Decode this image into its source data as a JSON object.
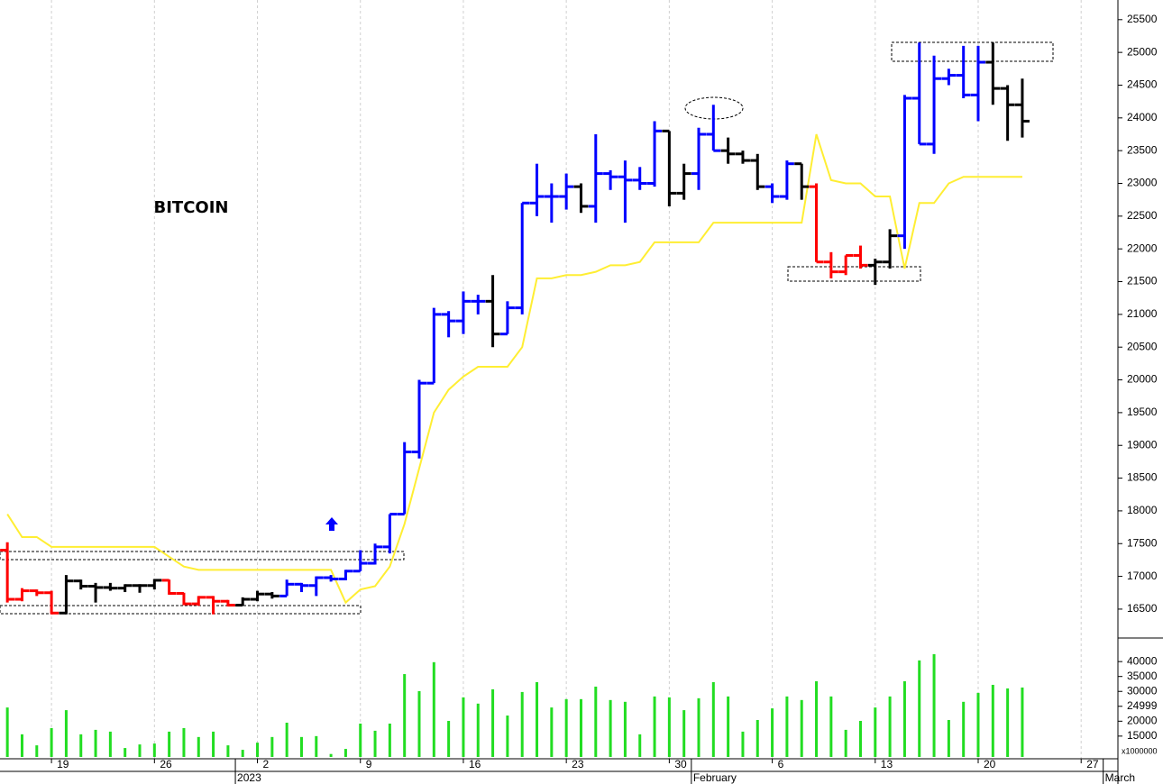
{
  "chart_data": [
    {
      "type": "ohlc",
      "title": "BITCOIN",
      "categories": [
        null,
        null,
        null,
        "19",
        null,
        null,
        null,
        null,
        null,
        null,
        "26",
        null,
        null,
        null,
        null,
        null,
        null,
        "2",
        null,
        null,
        null,
        null,
        null,
        null,
        "9",
        null,
        null,
        null,
        null,
        null,
        null,
        "16",
        null,
        null,
        null,
        null,
        null,
        null,
        "23",
        null,
        null,
        null,
        null,
        null,
        null,
        "30",
        null,
        null,
        null,
        null,
        null,
        null,
        "6",
        null,
        null,
        null,
        null,
        null,
        null,
        "13",
        null,
        null,
        null,
        null,
        null,
        null,
        "20",
        null,
        null,
        null,
        null,
        null,
        null,
        "27",
        null,
        null
      ],
      "months": [
        null,
        null,
        null,
        null,
        null,
        null,
        null,
        null,
        null,
        null,
        null,
        null,
        null,
        null,
        null,
        null,
        "2023",
        null,
        null,
        null,
        null,
        null,
        null,
        null,
        null,
        null,
        null,
        null,
        null,
        null,
        null,
        null,
        null,
        null,
        null,
        null,
        null,
        null,
        null,
        null,
        null,
        null,
        null,
        null,
        null,
        null,
        null,
        "February",
        null,
        null,
        null,
        null,
        null,
        null,
        null,
        null,
        null,
        null,
        null,
        null,
        null,
        null,
        null,
        null,
        null,
        null,
        null,
        null,
        null,
        null,
        null,
        null,
        null,
        null,
        null,
        "March"
      ],
      "open": [
        17400,
        16650,
        16780,
        16750,
        16440,
        16930,
        16850,
        16830,
        16820,
        16860,
        16860,
        16940,
        16740,
        16580,
        16680,
        16620,
        16560,
        16650,
        16730,
        16700,
        16880,
        16860,
        16980,
        16960,
        17080,
        17200,
        17450,
        17950,
        18900,
        19950,
        21000,
        20900,
        21200,
        21200,
        20700,
        21100,
        22700,
        22800,
        22800,
        22950,
        22650,
        23150,
        23100,
        23050,
        23000,
        23800,
        22850,
        23150,
        23750,
        23500,
        23450,
        23350,
        22950,
        22800,
        23300,
        22950,
        21800,
        21650,
        21900,
        21750,
        21800,
        22200,
        24300,
        23600,
        24600,
        24650,
        24350,
        24850,
        24450,
        24200,
        null,
        null,
        null,
        null,
        null,
        null
      ],
      "high": [
        17520,
        16820,
        16800,
        16780,
        17020,
        16950,
        16900,
        16900,
        16880,
        16880,
        16960,
        16950,
        16750,
        16700,
        16700,
        16640,
        16680,
        16780,
        16760,
        16950,
        16900,
        17000,
        17020,
        17100,
        17400,
        17500,
        17950,
        19050,
        20000,
        21100,
        21050,
        21350,
        21300,
        21600,
        21200,
        22700,
        23300,
        23000,
        23150,
        23000,
        23750,
        23200,
        23350,
        23250,
        23950,
        23800,
        23300,
        23850,
        24200,
        23700,
        23500,
        23450,
        23000,
        23350,
        23300,
        23000,
        21950,
        21900,
        22050,
        21850,
        22300,
        24350,
        25150,
        24950,
        24750,
        25100,
        25100,
        25150,
        24500,
        24600,
        null,
        null,
        null,
        null,
        null,
        null
      ],
      "low": [
        16600,
        16620,
        16700,
        16420,
        16420,
        16800,
        16600,
        16780,
        16760,
        16750,
        16800,
        16720,
        16560,
        16550,
        16420,
        16540,
        16550,
        16620,
        16660,
        16700,
        16760,
        16700,
        16920,
        16940,
        17080,
        17180,
        17350,
        17950,
        18800,
        19950,
        20650,
        20700,
        21000,
        20500,
        20700,
        21000,
        22500,
        22400,
        22600,
        22550,
        22400,
        22900,
        22400,
        22900,
        22950,
        22650,
        22750,
        22900,
        23500,
        23300,
        23300,
        22900,
        22700,
        22750,
        22750,
        21800,
        21550,
        21600,
        21700,
        21450,
        21700,
        22000,
        23600,
        23450,
        24500,
        24300,
        23950,
        24200,
        23650,
        23700,
        null,
        null,
        null,
        null,
        null,
        null
      ],
      "close": [
        16650,
        16780,
        16750,
        16440,
        16930,
        16850,
        16830,
        16820,
        16860,
        16860,
        16940,
        16740,
        16580,
        16680,
        16620,
        16560,
        16650,
        16730,
        16700,
        16880,
        16860,
        16980,
        16960,
        17080,
        17200,
        17450,
        17950,
        18900,
        19950,
        21000,
        20900,
        21200,
        21200,
        20700,
        21100,
        22700,
        22800,
        22800,
        22950,
        22650,
        23150,
        23100,
        23050,
        23000,
        23800,
        22850,
        23150,
        23750,
        23500,
        23450,
        23350,
        22950,
        22800,
        23300,
        22950,
        21800,
        21650,
        21900,
        21750,
        21800,
        22200,
        24300,
        23600,
        24600,
        24650,
        24350,
        24850,
        24450,
        24200,
        23950,
        null,
        null,
        null,
        null,
        null,
        null
      ],
      "bar_colors": [
        "#ff0000",
        "#ff0000",
        "#ff0000",
        "#ff0000",
        "#000000",
        "#000000",
        "#000000",
        "#000000",
        "#000000",
        "#000000",
        "#000000",
        "#ff0000",
        "#ff0000",
        "#ff0000",
        "#ff0000",
        "#ff0000",
        "#000000",
        "#000000",
        "#000000",
        "#0000ff",
        "#0000ff",
        "#0000ff",
        "#0000ff",
        "#0000ff",
        "#0000ff",
        "#0000ff",
        "#0000ff",
        "#0000ff",
        "#0000ff",
        "#0000ff",
        "#0000ff",
        "#0000ff",
        "#0000ff",
        "#000000",
        "#0000ff",
        "#0000ff",
        "#0000ff",
        "#0000ff",
        "#0000ff",
        "#000000",
        "#0000ff",
        "#0000ff",
        "#0000ff",
        "#0000ff",
        "#0000ff",
        "#000000",
        "#000000",
        "#0000ff",
        "#0000ff",
        "#000000",
        "#000000",
        "#000000",
        "#0000ff",
        "#0000ff",
        "#000000",
        "#ff0000",
        "#ff0000",
        "#ff0000",
        "#ff0000",
        "#000000",
        "#000000",
        "#0000ff",
        "#0000ff",
        "#0000ff",
        "#0000ff",
        "#0000ff",
        "#0000ff",
        "#000000",
        "#000000",
        "#000000",
        null,
        null,
        null,
        null,
        null,
        null
      ],
      "overlay": {
        "color": "#ffee33",
        "values": [
          17950,
          17600,
          17600,
          17450,
          17450,
          17450,
          17450,
          17450,
          17450,
          17450,
          17450,
          17300,
          17150,
          17100,
          17100,
          17100,
          17100,
          17100,
          17100,
          17100,
          17100,
          17100,
          17100,
          16600,
          16800,
          16850,
          17150,
          17800,
          18650,
          19500,
          19850,
          20050,
          20200,
          20200,
          20200,
          20500,
          21550,
          21550,
          21600,
          21600,
          21650,
          21750,
          21750,
          21800,
          22100,
          22100,
          22100,
          22100,
          22400,
          22400,
          22400,
          22400,
          22400,
          22400,
          22400,
          23750,
          23050,
          23000,
          23000,
          22800,
          22800,
          21700,
          22700,
          22700,
          23000,
          23100,
          23100,
          23100,
          23100,
          23100,
          null,
          null,
          null,
          null,
          null,
          null
        ]
      },
      "ylim": [
        16100,
        25800
      ],
      "yticks": [
        16500,
        17000,
        17500,
        18000,
        18500,
        19000,
        19500,
        20000,
        20500,
        21000,
        21500,
        22000,
        22500,
        23000,
        23500,
        24000,
        24500,
        25000,
        25500
      ],
      "grid": true
    },
    {
      "type": "bar",
      "color": "#22dd22",
      "unit": "x1000000",
      "values": [
        24600,
        15600,
        11900,
        17700,
        23700,
        15600,
        17100,
        16500,
        11000,
        12200,
        12500,
        16500,
        17700,
        14700,
        16500,
        11900,
        10400,
        12800,
        14700,
        19500,
        14700,
        15000,
        9000,
        10700,
        19200,
        16800,
        19200,
        35800,
        30100,
        39800,
        20100,
        28000,
        25900,
        30700,
        21900,
        29800,
        33100,
        24600,
        27400,
        27400,
        31600,
        27100,
        26500,
        15600,
        28300,
        28000,
        23700,
        27700,
        33100,
        28300,
        16500,
        20400,
        24300,
        28300,
        27100,
        33400,
        28300,
        17100,
        20100,
        24600,
        28300,
        33400,
        40400,
        42500,
        20400,
        26500,
        29500,
        32200,
        31000,
        31300,
        null,
        null,
        null,
        null,
        null,
        null
      ],
      "ylim": [
        8000,
        46700
      ],
      "yticks": [
        15000,
        20000,
        24999,
        30000,
        35000,
        40000
      ]
    }
  ]
}
